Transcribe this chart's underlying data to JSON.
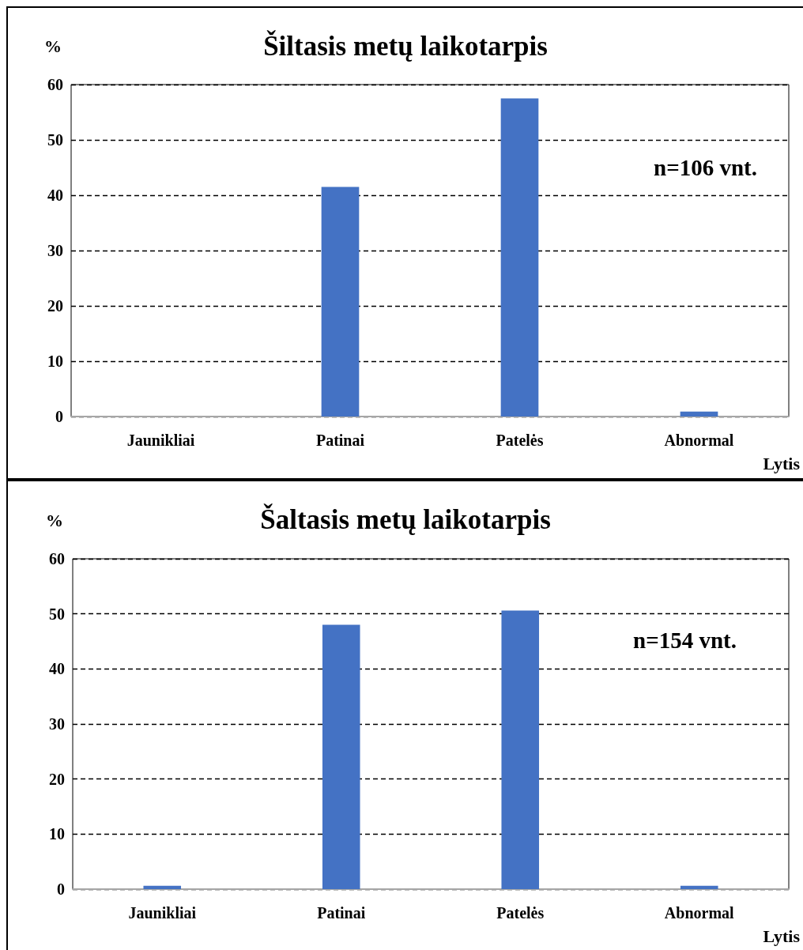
{
  "chart_data": [
    {
      "type": "bar",
      "title": "Šiltasis metų laikotarpis",
      "xlabel": "Lytis",
      "ylabel": "%",
      "categories": [
        "Jaunikliai",
        "Patinai",
        "Patelės",
        "Abnormal"
      ],
      "values": [
        0,
        41.5,
        57.5,
        0.9
      ],
      "color": "#4472c4",
      "ylim": [
        0,
        60
      ],
      "yticks": [
        0,
        10,
        20,
        30,
        40,
        50,
        60
      ],
      "grid": "y",
      "annotations": [
        "n=106 vnt."
      ]
    },
    {
      "type": "bar",
      "title": "Šaltasis metų laikotarpis",
      "xlabel": "Lytis",
      "ylabel": "%",
      "categories": [
        "Jaunikliai",
        "Patinai",
        "Patelės",
        "Abnormal"
      ],
      "values": [
        0.6,
        48,
        50.6,
        0.6
      ],
      "color": "#4472c4",
      "ylim": [
        0,
        60
      ],
      "yticks": [
        0,
        10,
        20,
        30,
        40,
        50,
        60
      ],
      "grid": "y",
      "annotations": [
        "n=154 vnt."
      ]
    }
  ]
}
